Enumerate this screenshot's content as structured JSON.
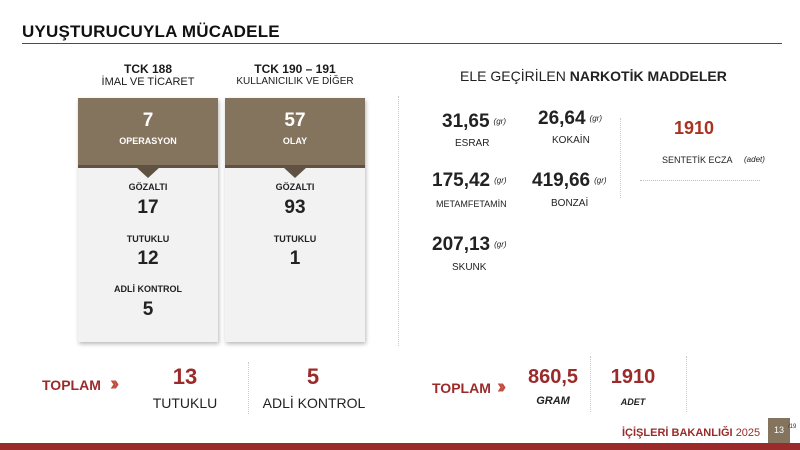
{
  "title": "UYUŞTURUCUYLA MÜCADELE",
  "columns": [
    {
      "heading1": "TCK 188",
      "heading2": "İMAL VE TİCARET",
      "top_value": "7",
      "top_label": "OPERASYON",
      "stats": [
        {
          "label": "GÖZALTI",
          "value": "17"
        },
        {
          "label": "TUTUKLU",
          "value": "12"
        },
        {
          "label": "ADLİ KONTROL",
          "value": "5"
        }
      ]
    },
    {
      "heading1": "TCK 190 – 191",
      "heading2": "KULLANICILIK VE DİĞER",
      "top_value": "57",
      "top_label": "OLAY",
      "stats": [
        {
          "label": "GÖZALTI",
          "value": "93"
        },
        {
          "label": "TUTUKLU",
          "value": "1"
        }
      ]
    }
  ],
  "seized": {
    "heading_prefix": "ELE GEÇİRİLEN",
    "heading_bold": "NARKOTİK MADDELER",
    "items": [
      {
        "value": "31,65",
        "unit": "(gr)",
        "label": "ESRAR"
      },
      {
        "value": "26,64",
        "unit": "(gr)",
        "label": "KOKAİN"
      },
      {
        "value": "175,42",
        "unit": "(gr)",
        "label": "METAMFETAMİN"
      },
      {
        "value": "419,66",
        "unit": "(gr)",
        "label": "BONZAİ"
      },
      {
        "value": "207,13",
        "unit": "(gr)",
        "label": "SKUNK"
      }
    ],
    "synthetic": {
      "value": "1910",
      "label": "SENTETİK ECZA",
      "unit": "(adet)"
    }
  },
  "totals": {
    "left_label": "TOPLAM",
    "tutuklu_value": "13",
    "tutuklu_label": "TUTUKLU",
    "adli_value": "5",
    "adli_label": "ADLİ KONTROL",
    "right_label": "TOPLAM",
    "gram_value": "860,5",
    "gram_label": "GRAM",
    "adet_value": "1910",
    "adet_label": "ADET"
  },
  "footer": {
    "ministry": "İÇİŞLERİ BAKANLIĞI",
    "year": "2025",
    "page": "13",
    "page_total": "/19"
  },
  "colors": {
    "accent": "#9b2a2a",
    "card_header": "#84735d",
    "highlight": "#a93222"
  }
}
